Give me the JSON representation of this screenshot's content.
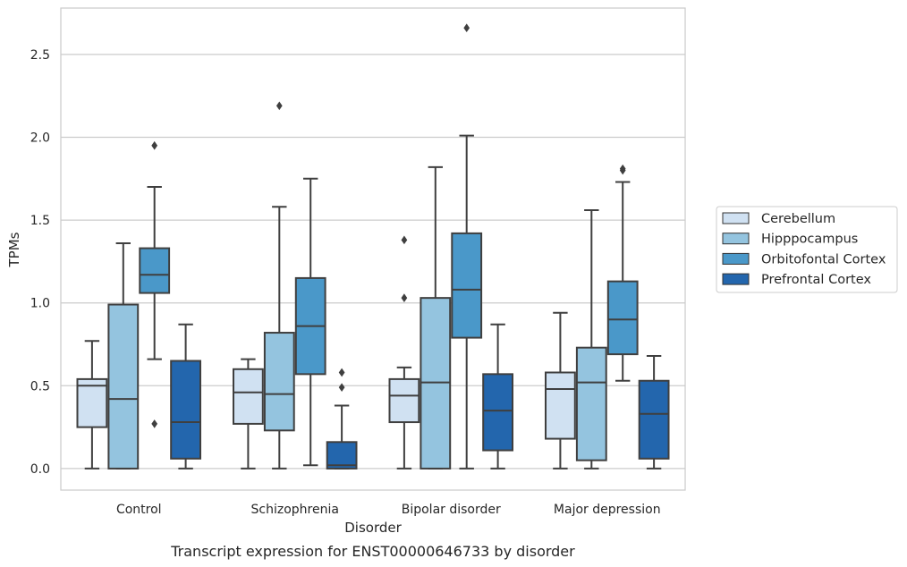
{
  "chart_data": {
    "type": "box",
    "caption": "Transcript expression for ENST00000646733 by disorder",
    "xlabel": "Disorder",
    "ylabel": "TPMs",
    "ylim": [
      -0.13,
      2.78
    ],
    "yticks": [
      "0.0",
      "0.5",
      "1.0",
      "1.5",
      "2.0",
      "2.5"
    ],
    "ytick_values": [
      0.0,
      0.5,
      1.0,
      1.5,
      2.0,
      2.5
    ],
    "grid": true,
    "legend_position": "right",
    "categories": [
      "Control",
      "Schizophrenia",
      "Bipolar disorder",
      "Major depression"
    ],
    "series": [
      {
        "name": "Cerebellum",
        "color": "#d0e1f2",
        "boxes": [
          {
            "whislo": 0.0,
            "q1": 0.25,
            "med": 0.5,
            "q3": 0.54,
            "whishi": 0.77,
            "fliers": []
          },
          {
            "whislo": 0.0,
            "q1": 0.27,
            "med": 0.46,
            "q3": 0.6,
            "whishi": 0.66,
            "fliers": []
          },
          {
            "whislo": 0.0,
            "q1": 0.28,
            "med": 0.44,
            "q3": 0.54,
            "whishi": 0.61,
            "fliers": [
              1.03,
              1.38
            ]
          },
          {
            "whislo": 0.0,
            "q1": 0.18,
            "med": 0.48,
            "q3": 0.58,
            "whishi": 0.94,
            "fliers": []
          }
        ]
      },
      {
        "name": "Hipppocampus",
        "color": "#94c4df",
        "boxes": [
          {
            "whislo": 0.0,
            "q1": 0.0,
            "med": 0.42,
            "q3": 0.99,
            "whishi": 1.36,
            "fliers": []
          },
          {
            "whislo": 0.0,
            "q1": 0.23,
            "med": 0.45,
            "q3": 0.82,
            "whishi": 1.58,
            "fliers": [
              2.19
            ]
          },
          {
            "whislo": 0.0,
            "q1": 0.0,
            "med": 0.52,
            "q3": 1.03,
            "whishi": 1.82,
            "fliers": []
          },
          {
            "whislo": 0.0,
            "q1": 0.05,
            "med": 0.52,
            "q3": 0.73,
            "whishi": 1.56,
            "fliers": []
          }
        ]
      },
      {
        "name": "Orbitofontal Cortex",
        "color": "#4a98c9",
        "boxes": [
          {
            "whislo": 0.66,
            "q1": 1.06,
            "med": 1.17,
            "q3": 1.33,
            "whishi": 1.7,
            "fliers": [
              1.95,
              0.27
            ]
          },
          {
            "whislo": 0.02,
            "q1": 0.57,
            "med": 0.86,
            "q3": 1.15,
            "whishi": 1.75,
            "fliers": []
          },
          {
            "whislo": 0.0,
            "q1": 0.79,
            "med": 1.08,
            "q3": 1.42,
            "whishi": 2.01,
            "fliers": [
              2.66
            ]
          },
          {
            "whislo": 0.53,
            "q1": 0.69,
            "med": 0.9,
            "q3": 1.13,
            "whishi": 1.73,
            "fliers": [
              1.81,
              1.8
            ]
          }
        ]
      },
      {
        "name": "Prefrontal Cortex",
        "color": "#2366ad",
        "boxes": [
          {
            "whislo": 0.0,
            "q1": 0.06,
            "med": 0.28,
            "q3": 0.65,
            "whishi": 0.87,
            "fliers": []
          },
          {
            "whislo": 0.0,
            "q1": 0.0,
            "med": 0.02,
            "q3": 0.16,
            "whishi": 0.38,
            "fliers": [
              0.49,
              0.58
            ]
          },
          {
            "whislo": 0.0,
            "q1": 0.11,
            "med": 0.35,
            "q3": 0.57,
            "whishi": 0.87,
            "fliers": []
          },
          {
            "whislo": 0.0,
            "q1": 0.06,
            "med": 0.33,
            "q3": 0.53,
            "whishi": 0.68,
            "fliers": []
          }
        ]
      }
    ]
  }
}
